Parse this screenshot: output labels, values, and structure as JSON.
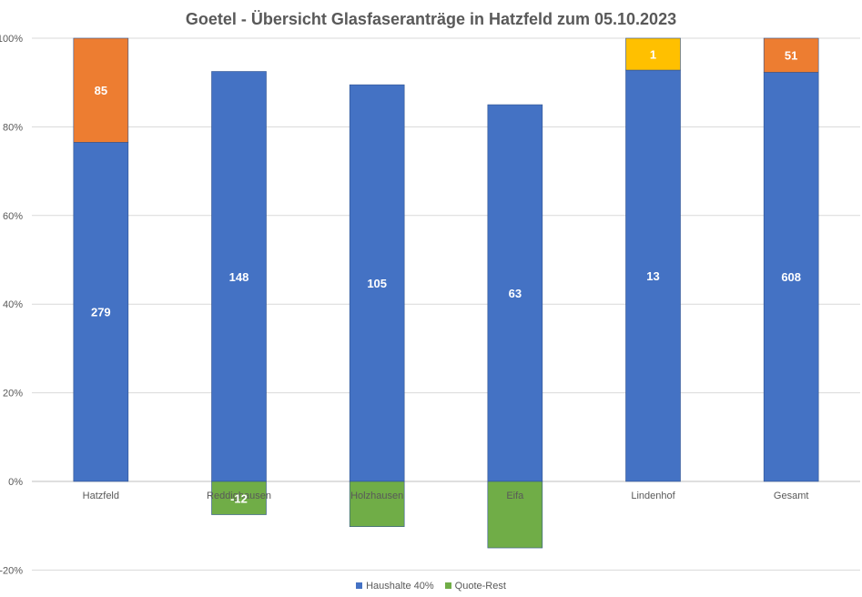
{
  "chart_data": {
    "type": "bar",
    "stacked": true,
    "title": "Goetel - Übersicht Glasfaseranträge in Hatzfeld zum 05.10.2023",
    "xlabel": "",
    "ylabel": "",
    "ylim": [
      -0.2,
      1.0
    ],
    "yticks": [
      -0.2,
      0.0,
      0.2,
      0.4,
      0.6,
      0.8,
      1.0
    ],
    "ytick_labels": [
      "-20%",
      "0%",
      "20%",
      "40%",
      "60%",
      "80%",
      "100%"
    ],
    "grid": true,
    "legend_position": "bottom",
    "categories": [
      "Hatzfeld",
      "Reddighausen",
      "Holzhausen",
      "Eifa",
      "Lindenhof",
      "Gesamt"
    ],
    "series": [
      {
        "name": "Haushalte 40%",
        "color": "#4472C4",
        "values": [
          0.765,
          0.925,
          0.895,
          0.85,
          0.928,
          0.923
        ],
        "labels": [
          "279",
          "148",
          "105",
          "63",
          "13",
          "608"
        ]
      },
      {
        "name": "Quote-Rest",
        "color": "#70AD47",
        "values": [
          0,
          -0.075,
          -0.102,
          -0.15,
          0,
          0
        ],
        "labels": [
          "",
          "-12",
          "",
          "",
          "",
          ""
        ]
      },
      {
        "color": "#ED7D31",
        "values": [
          0.235,
          0,
          0,
          0,
          0,
          0.077
        ],
        "labels": [
          "85",
          "",
          "",
          "",
          "",
          "51"
        ]
      },
      {
        "color": "#FFC000",
        "values": [
          0,
          0,
          0,
          0,
          0.072,
          0
        ],
        "labels": [
          "",
          "",
          "",
          "",
          "1",
          ""
        ]
      }
    ]
  }
}
